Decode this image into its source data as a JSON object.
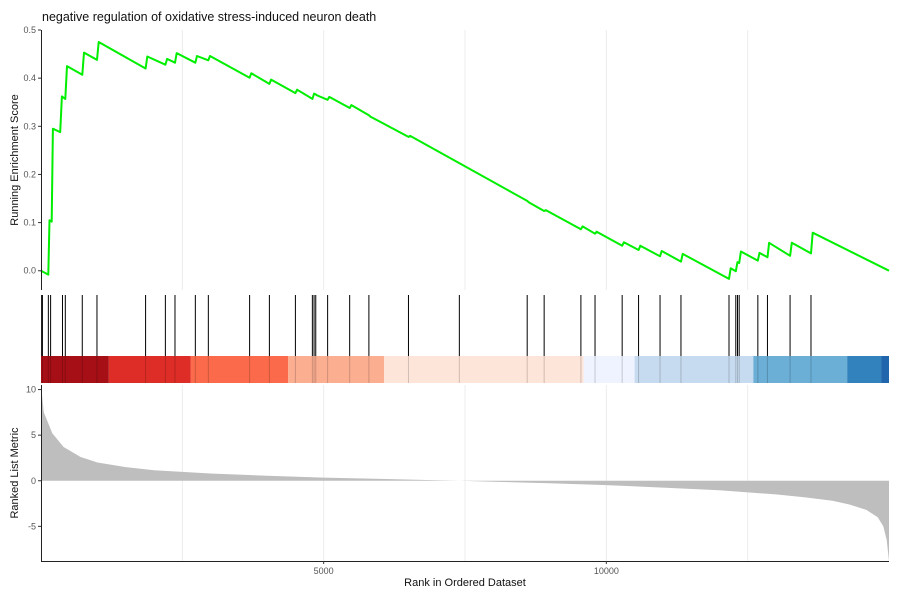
{
  "chart_data": {
    "type": "line",
    "title": "negative regulation of oxidative stress-induced neuron death",
    "xlabel": "Rank in Ordered Dataset",
    "x_ticks": [
      5000,
      10000
    ],
    "xlim": [
      0,
      15000
    ],
    "panels": {
      "enrichment": {
        "ylabel": "Running Enrichment Score",
        "ylim": [
          -0.04,
          0.5
        ],
        "y_ticks": [
          0.0,
          0.1,
          0.2,
          0.3,
          0.4,
          0.5
        ],
        "y_tick_labels": [
          "0.0",
          "0.1",
          "0.2",
          "0.3",
          "0.4",
          "0.5"
        ],
        "line_color": "#00ee00",
        "series": [
          {
            "x": [
              0,
              130,
              150,
              190,
              210,
              340,
              370,
              430,
              460,
              730,
              760,
              990,
              1020,
              1850,
              1880,
              2200,
              2230,
              2370,
              2400,
              2730,
              2760,
              2960,
              2990,
              3690,
              3720,
              4040,
              4070,
              4500,
              4530,
              4800,
              4830,
              4860,
              4890,
              5070,
              5100,
              5460,
              5490,
              5800,
              5830,
              6500,
              6530,
              8600,
              8630,
              8900,
              8930,
              9550,
              9580,
              9800,
              9830,
              10280,
              10310,
              10570,
              10600,
              10950,
              10980,
              11320,
              11350,
              12170,
              12200,
              12290,
              12320,
              12350,
              12380,
              12680,
              12710,
              12850,
              12880,
              13250,
              13280,
              13620,
              13650,
              15000
            ],
            "y": [
              0.0,
              -0.008,
              0.105,
              0.102,
              0.295,
              0.288,
              0.362,
              0.357,
              0.425,
              0.407,
              0.453,
              0.438,
              0.475,
              0.42,
              0.445,
              0.428,
              0.44,
              0.432,
              0.452,
              0.432,
              0.446,
              0.437,
              0.446,
              0.401,
              0.41,
              0.388,
              0.397,
              0.369,
              0.376,
              0.357,
              0.368,
              0.366,
              0.364,
              0.355,
              0.361,
              0.338,
              0.344,
              0.323,
              0.32,
              0.278,
              0.28,
              0.145,
              0.142,
              0.124,
              0.126,
              0.086,
              0.092,
              0.077,
              0.081,
              0.052,
              0.059,
              0.043,
              0.052,
              0.03,
              0.041,
              0.019,
              0.035,
              -0.017,
              0.005,
              -0.001,
              0.018,
              0.016,
              0.04,
              0.021,
              0.037,
              0.028,
              0.058,
              0.031,
              0.058,
              0.036,
              0.079,
              0.0
            ]
          }
        ]
      },
      "hits": {
        "positions": [
          25,
          130,
          170,
          380,
          430,
          730,
          990,
          1850,
          2200,
          2370,
          2730,
          2960,
          3690,
          4040,
          4500,
          4800,
          4830,
          4860,
          5070,
          5460,
          5800,
          6500,
          7400,
          8600,
          8900,
          9550,
          9800,
          10280,
          10570,
          10950,
          11320,
          12170,
          12290,
          12320,
          12350,
          12680,
          12850,
          13250,
          13620
        ]
      },
      "heat_bar": {
        "segments": [
          {
            "from": 0,
            "to": 1200,
            "color": "#a50f15"
          },
          {
            "from": 1200,
            "to": 2650,
            "color": "#de2d26"
          },
          {
            "from": 2650,
            "to": 4370,
            "color": "#fb6a4a"
          },
          {
            "from": 4370,
            "to": 6070,
            "color": "#fcae91"
          },
          {
            "from": 6070,
            "to": 9600,
            "color": "#fee5d9"
          },
          {
            "from": 9600,
            "to": 10500,
            "color": "#eff3ff"
          },
          {
            "from": 10500,
            "to": 12600,
            "color": "#c6dbef"
          },
          {
            "from": 12600,
            "to": 14260,
            "color": "#6baed6"
          },
          {
            "from": 14260,
            "to": 14860,
            "color": "#3182bd"
          },
          {
            "from": 14860,
            "to": 15000,
            "color": "#2166ac"
          }
        ]
      },
      "ranked_metric": {
        "ylabel": "Ranked List Metric",
        "ylim": [
          -8.8,
          10.5
        ],
        "y_ticks": [
          10,
          5,
          0,
          -5
        ],
        "y_tick_labels": [
          "10",
          "5",
          "0",
          "-5"
        ],
        "fill_color": "#bebebe",
        "x": [
          0,
          50,
          200,
          400,
          700,
          1000,
          1500,
          2000,
          3000,
          4000,
          5000,
          6000,
          7000,
          7400,
          8000,
          9000,
          10000,
          11000,
          12000,
          13000,
          13500,
          14000,
          14300,
          14600,
          14800,
          14900,
          14960,
          15000
        ],
        "y": [
          10.5,
          7.5,
          5.2,
          3.7,
          2.6,
          2.0,
          1.5,
          1.15,
          0.8,
          0.55,
          0.35,
          0.2,
          0.06,
          0.0,
          -0.1,
          -0.28,
          -0.48,
          -0.75,
          -1.05,
          -1.5,
          -1.8,
          -2.2,
          -2.6,
          -3.2,
          -4.0,
          -5.0,
          -6.5,
          -8.8
        ]
      }
    }
  }
}
